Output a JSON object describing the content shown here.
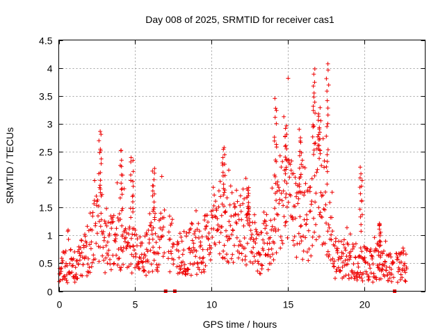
{
  "chart_data": {
    "type": "scatter",
    "title": "Day 008 of 2025, SRMTID for receiver cas1",
    "xlabel": "GPS time / hours",
    "ylabel": "SRMTID / TECUs",
    "xlim": [
      0,
      24
    ],
    "ylim": [
      0,
      4.5
    ],
    "xticks": [
      "0",
      "5",
      "10",
      "15",
      "20"
    ],
    "xtick_values": [
      0,
      5,
      10,
      15,
      20
    ],
    "yticks": [
      "0",
      "0.5",
      "1",
      "1.5",
      "2",
      "2.5",
      "3",
      "3.5",
      "4",
      "4.5"
    ],
    "ytick_values": [
      0,
      0.5,
      1,
      1.5,
      2,
      2.5,
      3,
      3.5,
      4,
      4.5
    ],
    "grid": true,
    "marker": "+",
    "color": "#ee0000",
    "trend_hours": [
      0,
      1,
      2,
      2.6,
      3,
      4,
      5,
      5.5,
      6,
      7,
      7.5,
      8,
      9,
      10,
      10.5,
      11,
      12,
      12.5,
      13,
      14,
      14.5,
      15,
      16,
      16.5,
      17,
      17.5,
      18,
      19,
      20,
      21,
      22,
      22.8
    ],
    "trend_srmtid": [
      0.45,
      0.45,
      0.7,
      1.3,
      0.8,
      0.9,
      0.7,
      0.55,
      0.8,
      0.95,
      0.8,
      0.65,
      0.75,
      0.9,
      1.4,
      1.2,
      1.1,
      0.9,
      0.75,
      0.85,
      1.6,
      1.6,
      1.2,
      1.3,
      2.0,
      1.6,
      0.6,
      0.55,
      0.5,
      0.45,
      0.4,
      0.45
    ],
    "peaks": [
      {
        "hour": 2.7,
        "srmtid": 2.85
      },
      {
        "hour": 4.1,
        "srmtid": 2.55
      },
      {
        "hour": 4.8,
        "srmtid": 2.45
      },
      {
        "hour": 6.2,
        "srmtid": 2.2
      },
      {
        "hour": 10.8,
        "srmtid": 2.6
      },
      {
        "hour": 12.4,
        "srmtid": 1.85
      },
      {
        "hour": 14.2,
        "srmtid": 3.4
      },
      {
        "hour": 14.9,
        "srmtid": 3.0
      },
      {
        "hour": 15.8,
        "srmtid": 2.85
      },
      {
        "hour": 16.7,
        "srmtid": 4.0
      },
      {
        "hour": 17.1,
        "srmtid": 3.25
      },
      {
        "hour": 17.6,
        "srmtid": 4.1
      },
      {
        "hour": 19.8,
        "srmtid": 2.25
      },
      {
        "hour": 21.0,
        "srmtid": 1.25
      }
    ],
    "gap_markers_hours": [
      7.0,
      7.6,
      22.0
    ]
  }
}
